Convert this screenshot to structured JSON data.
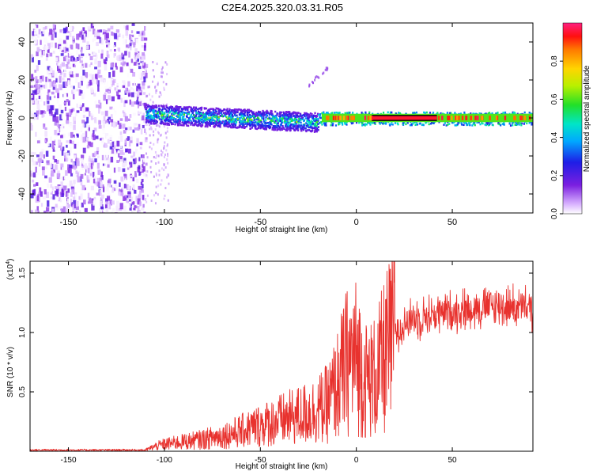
{
  "figure": {
    "title": "C2E4.2025.320.03.31.R05"
  },
  "chart_data": [
    {
      "type": "heatmap",
      "xlabel": "Height of straight line (km)",
      "ylabel": "Frequency (Hz)",
      "xlim": [
        -170,
        92
      ],
      "ylim": [
        -50,
        50
      ],
      "xticks": [
        -150,
        -100,
        -50,
        0,
        50
      ],
      "xtick_labels": [
        "-150",
        "-100",
        "-50",
        "0",
        "50"
      ],
      "yticks": [
        -40,
        -20,
        0,
        20,
        40
      ],
      "ytick_labels": [
        "-40",
        "-20",
        "0",
        "20",
        "40"
      ],
      "grid": false,
      "colorbar": {
        "label": "Normalized spectral amplitude",
        "range": [
          0,
          1
        ],
        "ticks": [
          0,
          0.2,
          0.4,
          0.6,
          0.8
        ],
        "tick_labels": [
          "0.0",
          "0.2",
          "0.4",
          "0.6",
          "0.8"
        ]
      },
      "features": [
        {
          "name": "broadband noise",
          "x_range": [
            -170,
            -110
          ],
          "freq_range": [
            -50,
            50
          ],
          "amplitude": "0.0-0.2"
        },
        {
          "name": "signal band",
          "x_range": [
            -110,
            -20
          ],
          "freq_center": 0,
          "halfwidth_hz": 5,
          "amplitude": "0.2-0.6"
        },
        {
          "name": "strong carrier line",
          "x_range": [
            -20,
            92
          ],
          "freq_center": 0,
          "amplitude": "0.8-1.0"
        },
        {
          "name": "scattered tone",
          "x_range": [
            -25,
            -15
          ],
          "freq_center": 22,
          "amplitude": "0.1-0.2"
        }
      ]
    },
    {
      "type": "line",
      "xlabel": "Height of straight line (km)",
      "ylabel": "SNR (10 * v/v)",
      "y_multiplier_label": "(x10",
      "y_multiplier_exp": "4",
      "y_multiplier_close": ")",
      "xlim": [
        -170,
        92
      ],
      "ylim": [
        0,
        1.6
      ],
      "xticks": [
        -150,
        -100,
        -50,
        0,
        50
      ],
      "xtick_labels": [
        "-150",
        "-100",
        "-50",
        "0",
        "50"
      ],
      "yticks": [
        0.5,
        1.0,
        1.5
      ],
      "ytick_labels": [
        "0.5",
        "1.0",
        "1.5"
      ],
      "grid": false,
      "series": [
        {
          "name": "SNR",
          "color": "#e8322e",
          "x": [
            -170,
            -110,
            -105,
            -100,
            -90,
            -80,
            -70,
            -60,
            -50,
            -40,
            -30,
            -20,
            -15,
            -10,
            -5,
            0,
            5,
            10,
            15,
            20,
            25,
            30,
            40,
            50,
            60,
            70,
            80,
            90,
            92
          ],
          "y": [
            0.01,
            0.01,
            0.04,
            0.06,
            0.08,
            0.1,
            0.13,
            0.17,
            0.22,
            0.26,
            0.3,
            0.35,
            0.4,
            0.55,
            0.75,
            0.8,
            0.6,
            0.62,
            0.8,
            1.0,
            1.08,
            1.12,
            1.15,
            1.18,
            1.2,
            1.22,
            1.22,
            1.2,
            1.2
          ]
        }
      ]
    }
  ]
}
